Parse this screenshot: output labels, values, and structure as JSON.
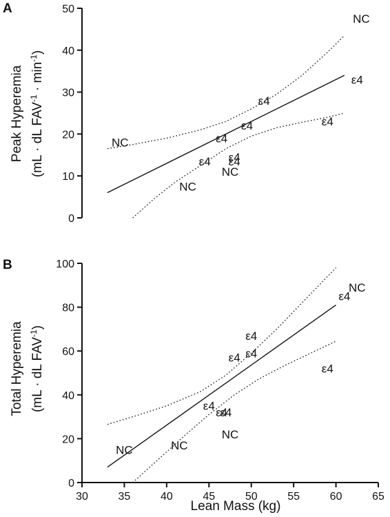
{
  "chart_data": [
    {
      "type": "scatter",
      "panel": "A",
      "ylabel_line1": "Peak Hyperemia",
      "ylabel_line2": "(mL · dL FAV",
      "ylabel_sup1": "-1",
      "ylabel_mid": " · min",
      "ylabel_sup2": "-1",
      "ylabel_close": ")",
      "xlim": [
        30,
        65
      ],
      "ylim": [
        0,
        50
      ],
      "yticks": [
        "0",
        "10",
        "20",
        "30",
        "40",
        "50"
      ],
      "points": [
        {
          "label": "NC",
          "x": 34.5,
          "y": 18
        },
        {
          "label": "NC",
          "x": 42.5,
          "y": 7.5
        },
        {
          "label": "ε4",
          "x": 44.5,
          "y": 13.5
        },
        {
          "label": "ε4",
          "x": 46.5,
          "y": 19
        },
        {
          "label": "ε4",
          "x": 48,
          "y": 14.5
        },
        {
          "label": "ε4",
          "x": 48,
          "y": 13.5
        },
        {
          "label": "NC",
          "x": 47.5,
          "y": 11
        },
        {
          "label": "ε4",
          "x": 49.5,
          "y": 22
        },
        {
          "label": "ε4",
          "x": 51.5,
          "y": 28
        },
        {
          "label": "ε4",
          "x": 59,
          "y": 23
        },
        {
          "label": "ε4",
          "x": 62.5,
          "y": 33
        },
        {
          "label": "NC",
          "x": 63,
          "y": 47.5
        }
      ],
      "fit_line": {
        "x": [
          33,
          61
        ],
        "y": [
          6,
          34
        ]
      },
      "ci_upper": {
        "x": [
          33,
          36,
          40,
          44,
          47,
          50,
          53,
          56,
          59,
          61
        ],
        "y": [
          16.5,
          17.5,
          19,
          21,
          23,
          26,
          29.5,
          34,
          39.5,
          43.5
        ]
      },
      "ci_lower": {
        "x": [
          36,
          38.5,
          41,
          44,
          47,
          50,
          53,
          56,
          59,
          61
        ],
        "y": [
          0,
          4.5,
          8.5,
          12.5,
          16.5,
          19.5,
          21.5,
          22.8,
          24,
          25
        ]
      }
    },
    {
      "type": "scatter",
      "panel": "B",
      "ylabel_line1": "Total Hyperemia",
      "ylabel_line2": "(mL · dL FAV",
      "ylabel_sup1": "-1",
      "ylabel_close": ")",
      "xlabel": "Lean Mass (kg)",
      "xlim": [
        30,
        65
      ],
      "ylim": [
        0,
        100
      ],
      "xticks": [
        "30",
        "35",
        "40",
        "45",
        "50",
        "55",
        "60",
        "65"
      ],
      "yticks": [
        "0",
        "20",
        "40",
        "60",
        "80",
        "100"
      ],
      "points": [
        {
          "label": "NC",
          "x": 35,
          "y": 15
        },
        {
          "label": "NC",
          "x": 41.5,
          "y": 17
        },
        {
          "label": "NC",
          "x": 47.5,
          "y": 22
        },
        {
          "label": "ε4",
          "x": 45,
          "y": 35
        },
        {
          "label": "ε4",
          "x": 46.5,
          "y": 32
        },
        {
          "label": "ε4",
          "x": 47,
          "y": 32
        },
        {
          "label": "ε4",
          "x": 48,
          "y": 57
        },
        {
          "label": "ε4",
          "x": 50,
          "y": 59
        },
        {
          "label": "ε4",
          "x": 50,
          "y": 67
        },
        {
          "label": "ε4",
          "x": 59,
          "y": 52
        },
        {
          "label": "ε4",
          "x": 61,
          "y": 85
        },
        {
          "label": "NC",
          "x": 62.5,
          "y": 89
        }
      ],
      "fit_line": {
        "x": [
          33,
          60
        ],
        "y": [
          7,
          81
        ]
      },
      "ci_upper": {
        "x": [
          33,
          36,
          40,
          44,
          47,
          50,
          53,
          56,
          60
        ],
        "y": [
          26.5,
          30,
          35,
          41.5,
          49,
          59,
          70,
          82,
          98
        ]
      },
      "ci_lower": {
        "x": [
          36,
          39,
          42,
          45,
          48,
          51,
          54,
          57,
          60
        ],
        "y": [
          0,
          10.5,
          21,
          31,
          40,
          47.5,
          53.5,
          59,
          64.5
        ]
      }
    }
  ]
}
